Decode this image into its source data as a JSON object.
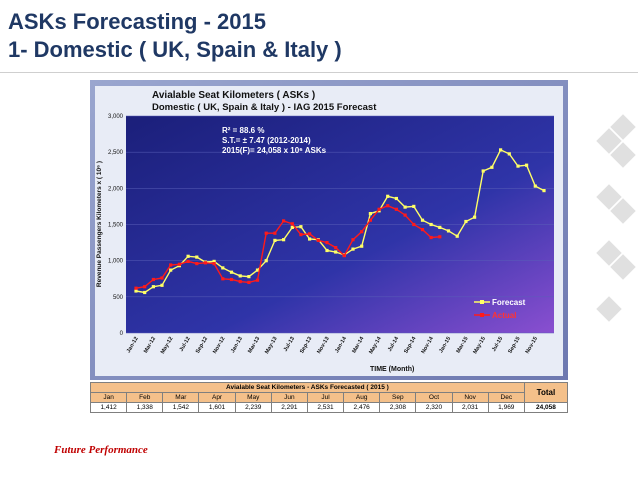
{
  "slide": {
    "title_line1": "ASKs Forecasting - 2015",
    "title_line2": "1- Domestic ( UK, Spain & Italy )",
    "footer": "Future Performance"
  },
  "chart_data": {
    "type": "line",
    "title": "Avialable Seat Kilometers ( ASKs )",
    "subtitle": "Domestic ( UK, Spain & Italy ) - IAG 2015 Forecast",
    "stats": [
      "R² = 88.6 %",
      "S.T.= ± 7.47   (2012-2014)",
      "2015(F)= 24,058 x 10⁶ ASKs"
    ],
    "xlabel": "TIME (Month)",
    "ylabel": "Revenue Passengers Kilometers x ( 10⁶ )",
    "ylim": [
      0,
      3000
    ],
    "yticks": [
      "0",
      "500",
      "1,000",
      "1,500",
      "2,000",
      "2,500",
      "3,000"
    ],
    "x": [
      "Jan-12",
      "Feb-12",
      "Mar-12",
      "Apr-12",
      "May-12",
      "Jun-12",
      "Jul-12",
      "Aug-12",
      "Sep-12",
      "Oct-12",
      "Nov-12",
      "Dec-12",
      "Jan-13",
      "Feb-13",
      "Mar-13",
      "Apr-13",
      "May-13",
      "Jun-13",
      "Jul-13",
      "Aug-13",
      "Sep-13",
      "Oct-13",
      "Nov-13",
      "Dec-13",
      "Jan-14",
      "Feb-14",
      "Mar-14",
      "Apr-14",
      "May-14",
      "Jun-14",
      "Jul-14",
      "Aug-14",
      "Sep-14",
      "Oct-14",
      "Nov-14",
      "Dec-14",
      "Jan-15",
      "Feb-15",
      "Mar-15",
      "Apr-15",
      "May-15",
      "Jun-15",
      "Jul-15",
      "Aug-15",
      "Sep-15",
      "Oct-15",
      "Nov-15",
      "Dec-15"
    ],
    "xticks": [
      "Jan-12",
      "Mar-12",
      "May-12",
      "Jul-12",
      "Sep-12",
      "Nov-12",
      "Jan-13",
      "Mar-13",
      "May-13",
      "Jul-13",
      "Sep-13",
      "Nov-13",
      "Jan-14",
      "Mar-14",
      "May-14",
      "Jul-14",
      "Sep-14",
      "Nov-14",
      "Jan-15",
      "Mar-15",
      "May-15",
      "Jul-15",
      "Sep-15",
      "Nov-15"
    ],
    "legend_position": "bottom-right",
    "series": [
      {
        "name": "Forecast",
        "color": "#ffff66",
        "values": [
          580,
          560,
          640,
          660,
          870,
          930,
          1060,
          1050,
          980,
          990,
          900,
          840,
          790,
          780,
          870,
          1000,
          1280,
          1290,
          1460,
          1470,
          1300,
          1290,
          1140,
          1120,
          1080,
          1160,
          1200,
          1650,
          1690,
          1890,
          1860,
          1740,
          1750,
          1560,
          1500,
          1460,
          1412,
          1338,
          1542,
          1601,
          2239,
          2291,
          2531,
          2476,
          2308,
          2320,
          2031,
          1969
        ]
      },
      {
        "name": "Actual",
        "color": "#ff1a1a",
        "values": [
          620,
          640,
          740,
          760,
          940,
          950,
          990,
          960,
          970,
          960,
          750,
          740,
          710,
          700,
          730,
          1380,
          1380,
          1550,
          1510,
          1360,
          1370,
          1280,
          1250,
          1180,
          1070,
          1290,
          1400,
          1560,
          1710,
          1760,
          1710,
          1630,
          1500,
          1430,
          1320,
          1330,
          null,
          null,
          null,
          null,
          null,
          null,
          null,
          null,
          null,
          null,
          null,
          null
        ]
      }
    ]
  },
  "table": {
    "caption": "Avialable Seat Kilometers - ASKs  Forecasted  ( 2015 )",
    "total_label": "Total",
    "months": [
      "Jan",
      "Feb",
      "Mar",
      "Apr",
      "May",
      "Jun",
      "Jul",
      "Aug",
      "Sep",
      "Oct",
      "Nov",
      "Dec"
    ],
    "values": [
      "1,412",
      "1,338",
      "1,542",
      "1,601",
      "2,239",
      "2,291",
      "2,531",
      "2,476",
      "2,308",
      "2,320",
      "2,031",
      "1,969"
    ],
    "total_value": "24,058"
  },
  "colors": {
    "title": "#1f3864",
    "footer": "#c00000",
    "accent": "#f4c08a"
  }
}
